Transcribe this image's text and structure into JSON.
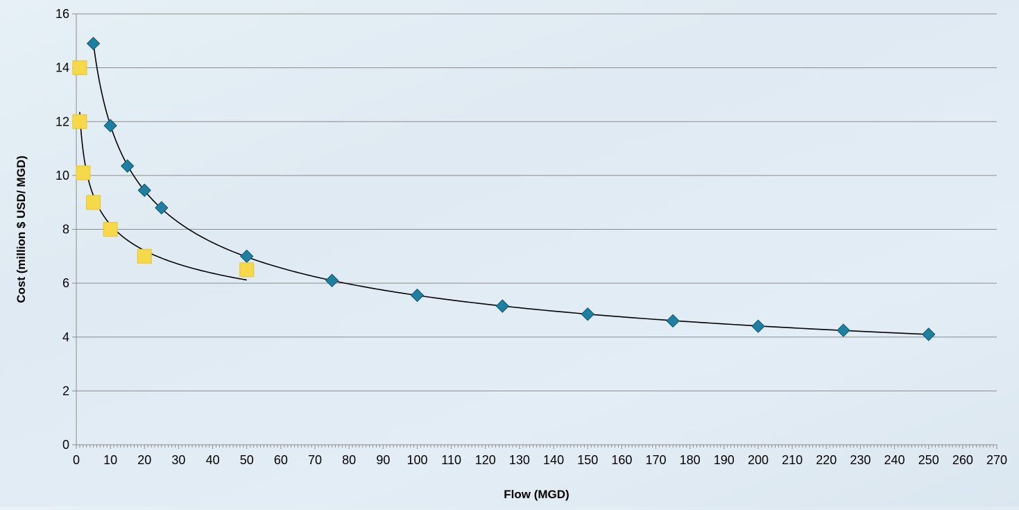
{
  "chart_data": {
    "type": "scatter",
    "title": "",
    "xlabel": "Flow (MGD)",
    "ylabel": "Cost (million $ USD/ MGD)",
    "xlim": [
      0,
      270
    ],
    "ylim": [
      0,
      16
    ],
    "xticks": [
      0,
      10,
      20,
      30,
      40,
      50,
      60,
      70,
      80,
      90,
      100,
      110,
      120,
      130,
      140,
      150,
      160,
      170,
      180,
      190,
      200,
      210,
      220,
      230,
      240,
      250,
      260,
      270
    ],
    "yticks": [
      0,
      2,
      4,
      6,
      8,
      10,
      12,
      14,
      16
    ],
    "grid": "horizontal",
    "legend": "none",
    "colors": {
      "diamond_series": "#1f7fa0",
      "square_series": "#f5d94a",
      "trendline": "#000000",
      "gridline": "#8c8c8c"
    },
    "series": [
      {
        "marker": "diamond",
        "x": [
          5,
          10,
          15,
          20,
          25,
          50,
          75,
          100,
          125,
          150,
          175,
          200,
          225,
          250
        ],
        "y": [
          14.9,
          11.85,
          10.35,
          9.45,
          8.8,
          7.0,
          6.1,
          5.55,
          5.15,
          4.85,
          4.6,
          4.4,
          4.25,
          4.1
        ],
        "trendline": {
          "type": "power",
          "x_range": [
            5,
            250
          ]
        }
      },
      {
        "marker": "square",
        "x": [
          1,
          1,
          2,
          5,
          10,
          20,
          50
        ],
        "y": [
          14.0,
          12.0,
          10.1,
          9.0,
          8.0,
          7.0,
          6.5
        ],
        "trendline": {
          "type": "power",
          "x_range": [
            1,
            50
          ]
        }
      }
    ]
  }
}
